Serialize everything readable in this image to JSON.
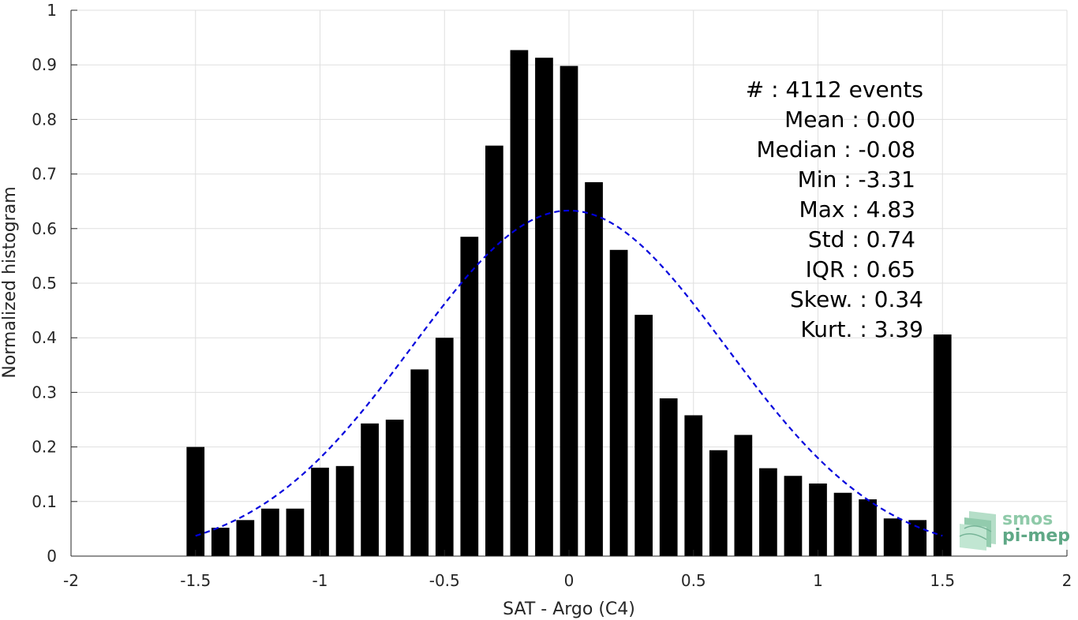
{
  "chart_data": {
    "type": "bar",
    "xlabel": "SAT - Argo (C4)",
    "ylabel": "Normalized histogram",
    "xlim": [
      -2,
      2
    ],
    "ylim": [
      0,
      1
    ],
    "xticks": [
      "-2",
      "-1.5",
      "-1",
      "-0.5",
      "0",
      "0.5",
      "1",
      "1.5",
      "2"
    ],
    "yticks": [
      "0",
      "0.1",
      "0.2",
      "0.3",
      "0.4",
      "0.5",
      "0.6",
      "0.7",
      "0.8",
      "0.9",
      "1"
    ],
    "grid": true,
    "bar_color": "#000000",
    "bins": [
      {
        "x": -1.5,
        "y": 0.2
      },
      {
        "x": -1.4,
        "y": 0.052
      },
      {
        "x": -1.3,
        "y": 0.066
      },
      {
        "x": -1.2,
        "y": 0.087
      },
      {
        "x": -1.1,
        "y": 0.087
      },
      {
        "x": -1.0,
        "y": 0.162
      },
      {
        "x": -0.9,
        "y": 0.165
      },
      {
        "x": -0.8,
        "y": 0.243
      },
      {
        "x": -0.7,
        "y": 0.25
      },
      {
        "x": -0.6,
        "y": 0.342
      },
      {
        "x": -0.5,
        "y": 0.4
      },
      {
        "x": -0.4,
        "y": 0.585
      },
      {
        "x": -0.3,
        "y": 0.752
      },
      {
        "x": -0.2,
        "y": 0.927
      },
      {
        "x": -0.1,
        "y": 0.913
      },
      {
        "x": 0.0,
        "y": 0.898
      },
      {
        "x": 0.1,
        "y": 0.685
      },
      {
        "x": 0.2,
        "y": 0.561
      },
      {
        "x": 0.3,
        "y": 0.442
      },
      {
        "x": 0.4,
        "y": 0.289
      },
      {
        "x": 0.5,
        "y": 0.258
      },
      {
        "x": 0.6,
        "y": 0.194
      },
      {
        "x": 0.7,
        "y": 0.222
      },
      {
        "x": 0.8,
        "y": 0.161
      },
      {
        "x": 0.9,
        "y": 0.147
      },
      {
        "x": 1.0,
        "y": 0.133
      },
      {
        "x": 1.1,
        "y": 0.116
      },
      {
        "x": 1.2,
        "y": 0.104
      },
      {
        "x": 1.3,
        "y": 0.069
      },
      {
        "x": 1.4,
        "y": 0.066
      },
      {
        "x": 1.5,
        "y": 0.406
      }
    ],
    "fit_curve": {
      "type": "gaussian",
      "mean": 0.0,
      "std": 0.63,
      "peak": 0.633,
      "x_range": [
        -1.5,
        1.5
      ],
      "color": "#0000dd",
      "style": "dashed"
    },
    "stats": [
      "#  : 4112 events",
      "Mean : 0.00",
      "Median : -0.08",
      "Min : -3.31",
      "Max : 4.83",
      "Std : 0.74",
      "IQR : 0.65",
      "Skew. : 0.34",
      "Kurt. : 3.39"
    ]
  },
  "logo": {
    "line1": "smos",
    "line2": "pi-mep",
    "color": "#5fa886"
  }
}
